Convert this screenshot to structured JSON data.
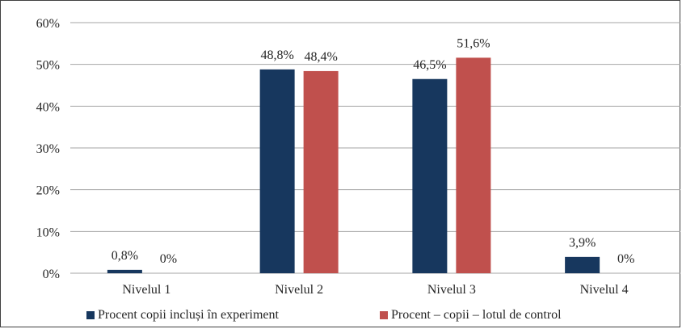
{
  "chart_data": {
    "type": "bar",
    "categories": [
      "Nivelul 1",
      "Nivelul 2",
      "Nivelul 3",
      "Nivelul 4"
    ],
    "series": [
      {
        "name": "Procent copii incluși în experiment",
        "values": [
          0.8,
          48.8,
          46.5,
          3.9
        ],
        "labels": [
          "0,8%",
          "48,8%",
          "46,5%",
          "3,9%"
        ],
        "color": "#17375e"
      },
      {
        "name": "Procent – copii – lotul de control",
        "values": [
          0,
          48.4,
          51.6,
          0
        ],
        "labels": [
          "0%",
          "48,4%",
          "51,6%",
          "0%"
        ],
        "color": "#c0504d"
      }
    ],
    "yticks": [
      "0%",
      "10%",
      "20%",
      "30%",
      "40%",
      "50%",
      "60%"
    ],
    "ylim": [
      0,
      60
    ],
    "grid": true,
    "legend_position": "bottom"
  }
}
